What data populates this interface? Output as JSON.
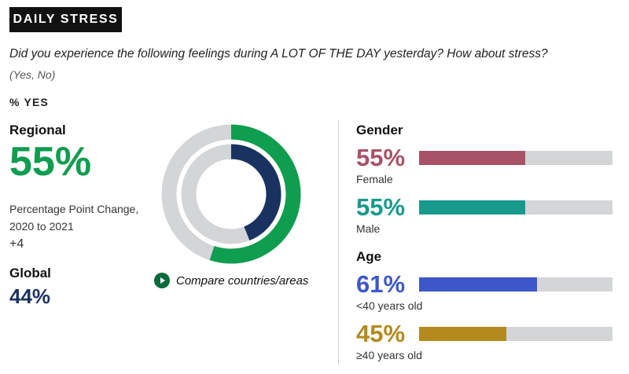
{
  "header": {
    "tag": "DAILY STRESS",
    "question": "Did you experience the following feelings during A LOT OF THE DAY yesterday? How about stress?",
    "answers": "(Yes, No)",
    "measure": "% YES"
  },
  "regional": {
    "label": "Regional",
    "value": "55%",
    "ppc_label": "Percentage Point Change, 2020 to 2021",
    "ppc_value": "+4"
  },
  "global": {
    "label": "Global",
    "value": "44%"
  },
  "compare": {
    "label": "Compare countries/areas"
  },
  "colors": {
    "regional": "#0f9d4f",
    "global": "#1a3260",
    "track": "#d3d5d7",
    "female": "#a85266",
    "male": "#179a8c",
    "under40": "#3d57c8",
    "over40": "#b48a1e"
  },
  "chart_data": [
    {
      "type": "pie",
      "subtype": "nested-donut",
      "series": [
        {
          "name": "Regional",
          "values": [
            55,
            45
          ]
        },
        {
          "name": "Global",
          "values": [
            44,
            56
          ]
        }
      ]
    },
    {
      "type": "bar",
      "orientation": "horizontal",
      "title": "Gender",
      "categories": [
        "Female",
        "Male"
      ],
      "values": [
        55,
        55
      ],
      "labels": [
        "55%",
        "55%"
      ],
      "xlim": [
        0,
        100
      ]
    },
    {
      "type": "bar",
      "orientation": "horizontal",
      "title": "Age",
      "categories": [
        "<40 years old",
        "≥40 years old"
      ],
      "values": [
        61,
        45
      ],
      "labels": [
        "61%",
        "45%"
      ],
      "xlim": [
        0,
        100
      ]
    }
  ]
}
